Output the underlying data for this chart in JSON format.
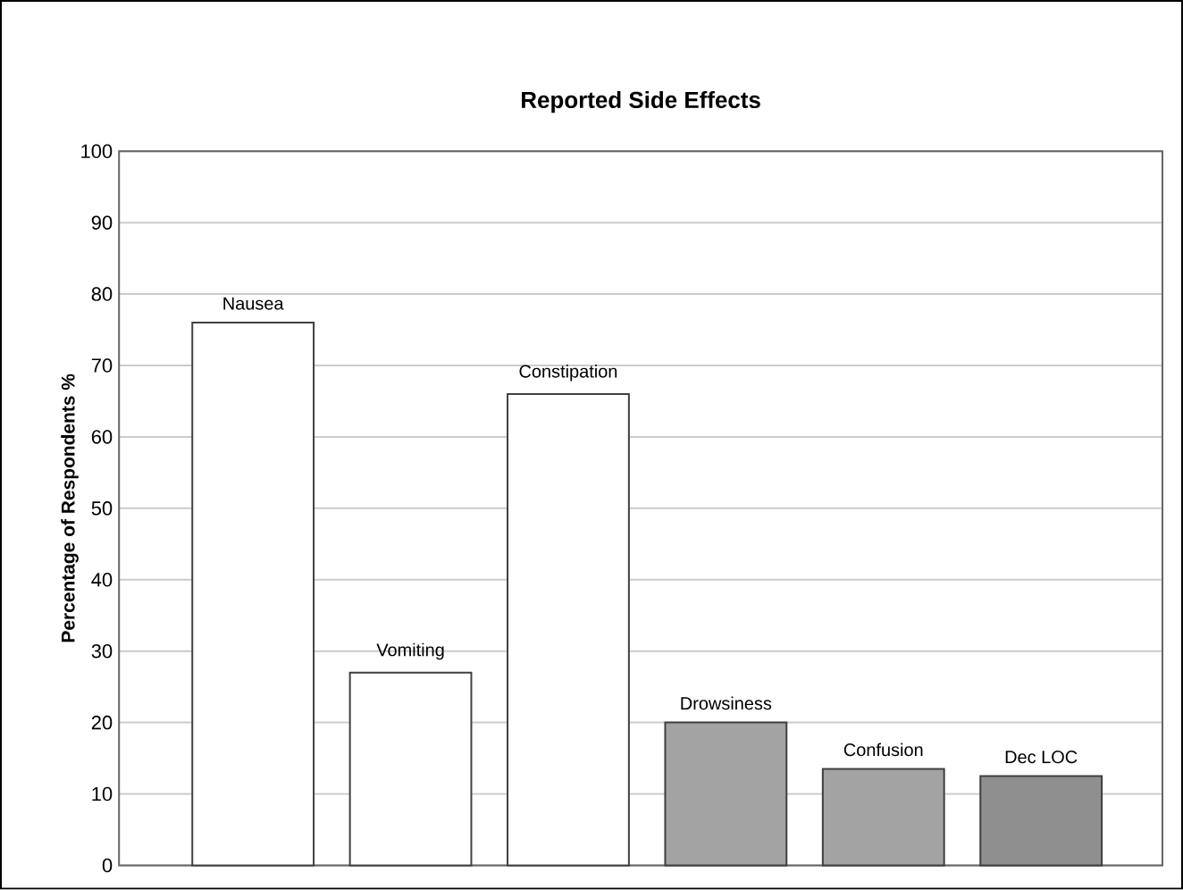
{
  "chart_data": {
    "type": "bar",
    "title": "Reported Side Effects",
    "ylabel": "Percentage of Respondents %",
    "categories": [
      "Nausea",
      "Vomiting",
      "Constipation",
      "Drowsiness",
      "Confusion",
      "Dec LOC"
    ],
    "values": [
      76,
      27,
      66,
      20,
      13.5,
      12.5
    ],
    "colors": [
      "#ffffff",
      "#ffffff",
      "#ffffff",
      "#a3a3a3",
      "#a3a3a3",
      "#8f8f8f"
    ],
    "ylim": [
      0,
      100
    ],
    "yticks": [
      0,
      10,
      20,
      30,
      40,
      50,
      60,
      70,
      80,
      90,
      100
    ],
    "grid": "y"
  }
}
